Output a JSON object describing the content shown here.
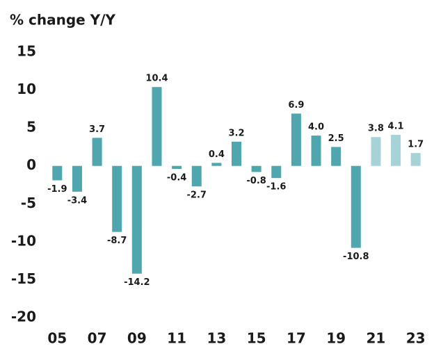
{
  "chart_data": {
    "type": "bar",
    "title": "% change Y/Y",
    "categories": [
      "05",
      null,
      "07",
      null,
      "09",
      null,
      "11",
      null,
      "13",
      null,
      "15",
      null,
      "17",
      null,
      "19",
      null,
      "21",
      null,
      "23"
    ],
    "values": [
      -1.9,
      -3.4,
      3.7,
      -8.7,
      -14.2,
      10.4,
      -0.4,
      -2.7,
      0.4,
      3.2,
      -0.8,
      -1.6,
      6.9,
      4.0,
      2.5,
      -10.8,
      3.8,
      4.1,
      1.7
    ],
    "value_labels": [
      "-1.9",
      "-3.4",
      "3.7",
      "-8.7",
      "-14.2",
      "10.4",
      "-0.4",
      "-2.7",
      "0.4",
      "3.2",
      "-0.8",
      "-1.6",
      "6.9",
      "4.0",
      "2.5",
      "-10.8",
      "3.8",
      "4.1",
      "1.7"
    ],
    "colors": [
      "#4ea6ae",
      "#4ea6ae",
      "#4ea6ae",
      "#4ea6ae",
      "#4ea6ae",
      "#4ea6ae",
      "#4ea6ae",
      "#4ea6ae",
      "#4ea6ae",
      "#4ea6ae",
      "#4ea6ae",
      "#4ea6ae",
      "#4ea6ae",
      "#4ea6ae",
      "#4ea6ae",
      "#4ea6ae",
      "#a6d3d7",
      "#a6d3d7",
      "#a6d3d7"
    ],
    "ylim": [
      -20,
      15
    ],
    "yticks": [
      -20,
      -15,
      -10,
      -5,
      0,
      5,
      10,
      15
    ],
    "grid": false
  }
}
